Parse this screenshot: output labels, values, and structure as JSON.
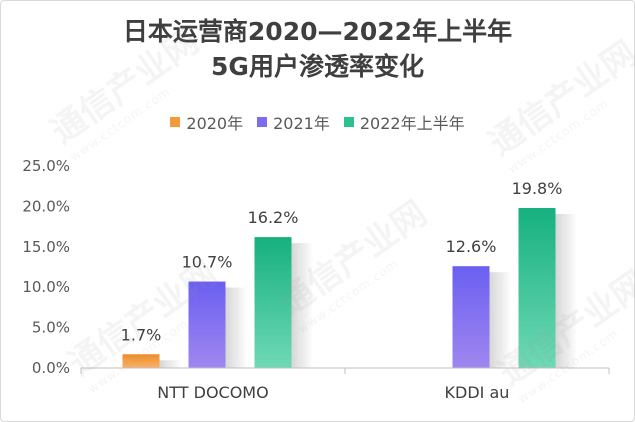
{
  "chart_data": {
    "type": "bar",
    "title_line1": "日本运营商2020—2022年上半年",
    "title_line2": "5G用户渗透率变化",
    "categories": [
      "NTT DOCOMO",
      "KDDI au"
    ],
    "series": [
      {
        "name": "2020年",
        "values": [
          1.7,
          null
        ],
        "labels": [
          "1.7%",
          ""
        ],
        "color": "#f59a3c"
      },
      {
        "name": "2021年",
        "values": [
          10.7,
          12.6
        ],
        "labels": [
          "10.7%",
          "12.6%"
        ],
        "color": "#7b6cf0"
      },
      {
        "name": "2022年上半年",
        "values": [
          16.2,
          19.8
        ],
        "labels": [
          "16.2%",
          "19.8%"
        ],
        "color": "#2fc08f"
      }
    ],
    "y_ticks": [
      "0.0%",
      "5.0%",
      "10.0%",
      "15.0%",
      "20.0%",
      "25.0%"
    ],
    "ylim": [
      0,
      25
    ],
    "grid": false,
    "legend": "top-center"
  },
  "watermark": {
    "text": "通信产业网",
    "url": "www.cctcom.com"
  }
}
